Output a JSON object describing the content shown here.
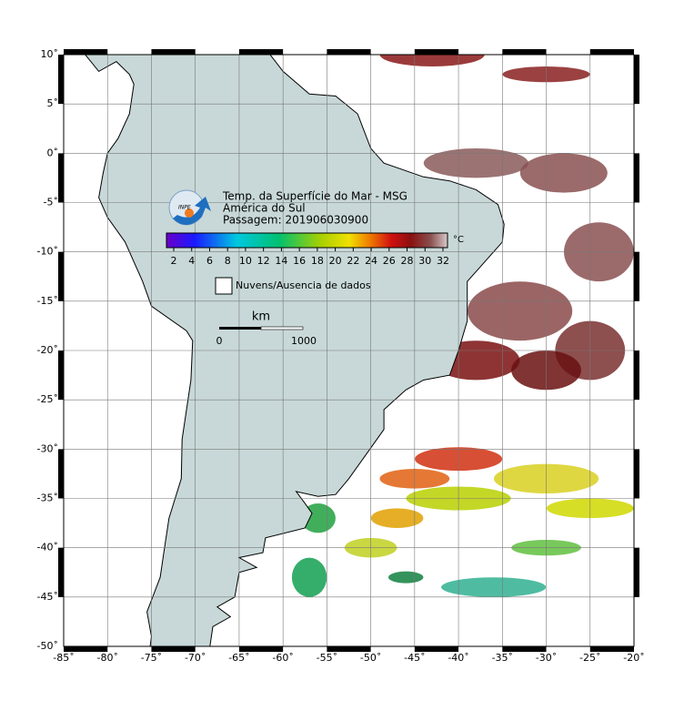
{
  "map": {
    "title": "Temp. da Superfície do Mar - MSG",
    "subtitle": "América do Sul",
    "pass": "Passagem: 201906030900",
    "logo": "INPE",
    "lon_range": [
      -85,
      -20
    ],
    "lat_range": [
      -50,
      10
    ],
    "lon_ticks": [
      {
        "value": -85,
        "label": "-85˚"
      },
      {
        "value": -80,
        "label": "-80˚"
      },
      {
        "value": -75,
        "label": "-75˚"
      },
      {
        "value": -70,
        "label": "-70˚"
      },
      {
        "value": -65,
        "label": "-65˚"
      },
      {
        "value": -60,
        "label": "-60˚"
      },
      {
        "value": -55,
        "label": "-55˚"
      },
      {
        "value": -50,
        "label": "-50˚"
      },
      {
        "value": -45,
        "label": "-45˚"
      },
      {
        "value": -40,
        "label": "-40˚"
      },
      {
        "value": -35,
        "label": "-35˚"
      },
      {
        "value": -30,
        "label": "-30˚"
      },
      {
        "value": -25,
        "label": "-25˚"
      },
      {
        "value": -20,
        "label": "-20˚"
      }
    ],
    "lat_ticks": [
      {
        "value": 10,
        "label": "10˚"
      },
      {
        "value": 5,
        "label": "5˚"
      },
      {
        "value": 0,
        "label": "0˚"
      },
      {
        "value": -5,
        "label": "-5˚"
      },
      {
        "value": -10,
        "label": "-10˚"
      },
      {
        "value": -15,
        "label": "-15˚"
      },
      {
        "value": -20,
        "label": "-20˚"
      },
      {
        "value": -25,
        "label": "-25˚"
      },
      {
        "value": -30,
        "label": "-30˚"
      },
      {
        "value": -35,
        "label": "-35˚"
      },
      {
        "value": -40,
        "label": "-40˚"
      },
      {
        "value": -45,
        "label": "-45˚"
      },
      {
        "value": -50,
        "label": "-50˚"
      }
    ],
    "colorbar": {
      "unit": "°C",
      "ticks": [
        2,
        4,
        6,
        8,
        10,
        12,
        14,
        16,
        18,
        20,
        22,
        24,
        26,
        28,
        30,
        32
      ]
    },
    "legend": "Nuvens/Ausencia de dados",
    "scale": {
      "unit": "km",
      "labels": [
        "0",
        "1000"
      ]
    }
  }
}
